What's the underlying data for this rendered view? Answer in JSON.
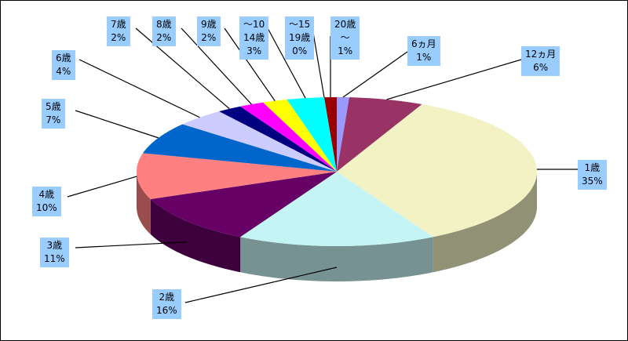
{
  "chart_data": {
    "type": "pie3d",
    "categories": [
      "6ヵ月",
      "12ヵ月",
      "1歳",
      "2歳",
      "3歳",
      "4歳",
      "5歳",
      "6歳",
      "7歳",
      "8歳",
      "9歳",
      "～10\n14歳",
      "～15\n19歳",
      "20歳\n～"
    ],
    "values": [
      1,
      6,
      35,
      16,
      11,
      10,
      7,
      4,
      2,
      2,
      2,
      3,
      0,
      1
    ],
    "value_labels": [
      "1%",
      "6%",
      "35%",
      "16%",
      "11%",
      "10%",
      "7%",
      "4%",
      "2%",
      "2%",
      "2%",
      "3%",
      "0%",
      "1%"
    ],
    "colors": [
      "#9999ff",
      "#993366",
      "#f2f2c4",
      "#c4f4f4",
      "#660066",
      "#ff8080",
      "#0066cc",
      "#ccccff",
      "#000080",
      "#ff00ff",
      "#ffff00",
      "#00ffff",
      "#00c0c0",
      "#990000"
    ]
  }
}
